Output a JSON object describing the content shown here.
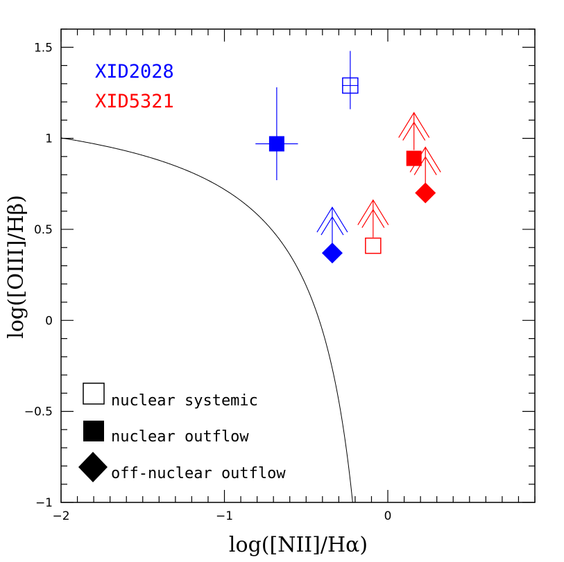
{
  "chart_data": {
    "type": "scatter",
    "xlabel": "log([NII]/Hα)",
    "ylabel": "log([OIII]/Hβ)",
    "xlim": [
      -2,
      0.9
    ],
    "ylim": [
      -1,
      1.6
    ],
    "xticks": [
      -2,
      -1,
      0
    ],
    "xtick_labels": [
      "−2",
      "−1",
      "0"
    ],
    "yticks": [
      -1,
      -0.5,
      0,
      0.5,
      1,
      1.5
    ],
    "ytick_labels": [
      "−1",
      "−0.5",
      "0",
      "0.5",
      "1",
      "1.5"
    ],
    "grid": false,
    "curve": {
      "name": "Kauffmann demarcation",
      "formula": "y = 0.61/(x - 0.05) + 1.3"
    },
    "series": [
      {
        "name": "XID2028",
        "color": "#0000ff",
        "points": [
          {
            "kind": "nuclear systemic",
            "x": -0.23,
            "y": 1.29,
            "xerr": 0.05,
            "yerr": [
              0.13,
              0.19
            ],
            "upper_arrow": false
          },
          {
            "kind": "nuclear outflow",
            "x": -0.68,
            "y": 0.97,
            "xerr": 0.13,
            "yerr": [
              0.2,
              0.31
            ],
            "upper_arrow": false
          },
          {
            "kind": "off-nuclear outflow",
            "x": -0.34,
            "y": 0.37,
            "xerr": 0,
            "yerr": [
              0,
              0
            ],
            "upper_arrow": true
          }
        ]
      },
      {
        "name": "XID5321",
        "color": "#ff0000",
        "points": [
          {
            "kind": "nuclear systemic",
            "x": -0.09,
            "y": 0.41,
            "xerr": 0,
            "yerr": [
              0,
              0
            ],
            "upper_arrow": true
          },
          {
            "kind": "nuclear outflow",
            "x": 0.16,
            "y": 0.89,
            "xerr": 0,
            "yerr": [
              0,
              0
            ],
            "upper_arrow": true
          },
          {
            "kind": "off-nuclear outflow",
            "x": 0.23,
            "y": 0.7,
            "xerr": 0,
            "yerr": [
              0,
              0
            ],
            "upper_arrow": true
          }
        ]
      }
    ],
    "legend": {
      "placement": "bottom-left",
      "entries": [
        {
          "marker": "open-square",
          "label": "nuclear systemic"
        },
        {
          "marker": "filled-square",
          "label": "nuclear outflow"
        },
        {
          "marker": "filled-diamond",
          "label": "off-nuclear outflow"
        }
      ]
    }
  }
}
